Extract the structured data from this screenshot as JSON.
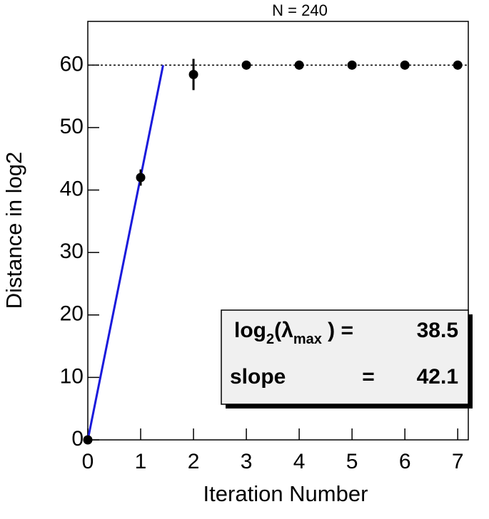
{
  "chart_data": {
    "type": "scatter",
    "title": "N = 240",
    "x_label": "Iteration Number",
    "y_label": "Distance in log2",
    "x": [
      0,
      1,
      2,
      3,
      4,
      5,
      6,
      7
    ],
    "values": [
      0,
      42,
      58.5,
      60,
      60,
      60,
      60,
      60
    ],
    "errors": [
      0,
      1.3,
      2.5,
      0,
      0,
      0,
      0,
      0
    ],
    "color": "#000000",
    "fit": {
      "x": [
        0,
        1.425
      ],
      "values": [
        0,
        60
      ],
      "color": "#1a1adc"
    },
    "reference_line": 60,
    "xlim": [
      0,
      7.2
    ],
    "ylim": [
      0,
      67
    ],
    "xticks": [
      0,
      1,
      2,
      3,
      4,
      5,
      6,
      7
    ],
    "yticks": [
      0,
      10,
      20,
      30,
      40,
      50,
      60
    ],
    "stats": {
      "label_parts": [
        "log",
        "2",
        "(λ",
        "max",
        " ) =",
        "slope",
        "="
      ],
      "lambda": 38.5,
      "slope": 42.1
    }
  }
}
